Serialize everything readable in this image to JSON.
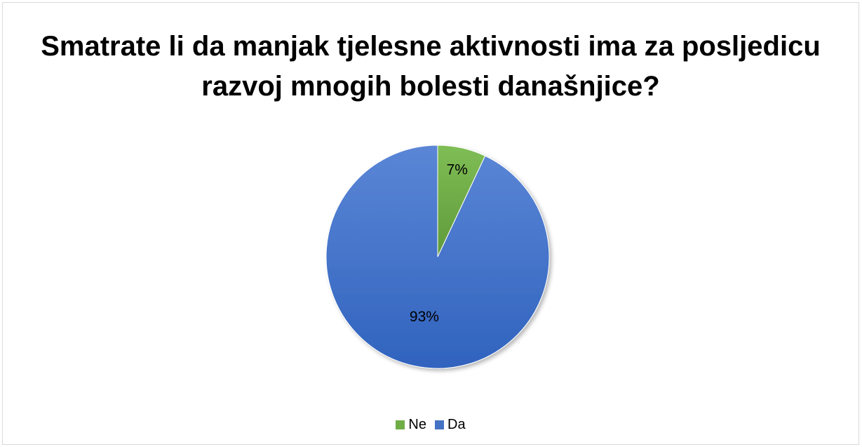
{
  "chart_data": {
    "type": "pie",
    "title": "Smatrate li da manjak tjelesne aktivnosti ima za posljedicu razvoj mnogih bolesti današnjice?",
    "categories": [
      "Ne",
      "Da"
    ],
    "values": [
      7,
      93
    ],
    "data_labels": [
      "7%",
      "93%"
    ],
    "colors": [
      "#70ad47",
      "#4472c4"
    ],
    "legend_position": "bottom"
  }
}
